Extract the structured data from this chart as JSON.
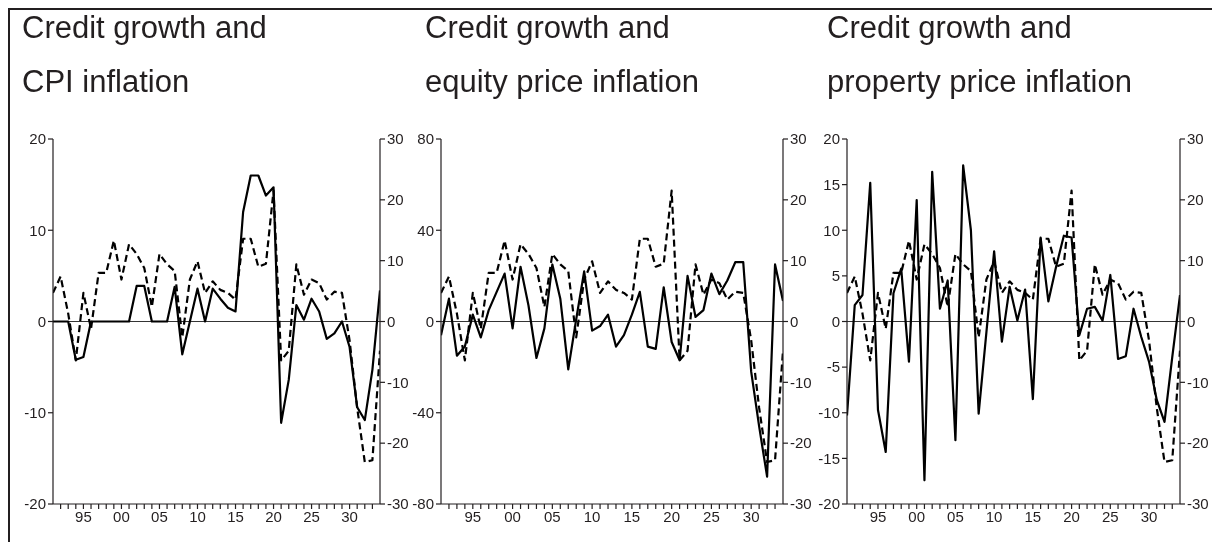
{
  "chart_data": [
    {
      "type": "line",
      "title": "Credit growth and\nCPI inflation",
      "x": [
        1991,
        1992,
        1993,
        1994,
        1995,
        1996,
        1997,
        1998,
        1999,
        2000,
        2001,
        2002,
        2003,
        2004,
        2005,
        2006,
        2007,
        2008,
        2009,
        2010,
        2011,
        2012,
        2013,
        2014,
        2015,
        2016,
        2017,
        2018,
        2019,
        2020,
        2021,
        2022,
        2023,
        2024,
        2025,
        2026,
        2027,
        2028,
        2029,
        2030,
        2031,
        2032,
        2033,
        2034
      ],
      "xlim": [
        1991,
        2034
      ],
      "xticks": [
        {
          "value": 1992,
          "label": null
        },
        {
          "value": 1993,
          "label": null
        },
        {
          "value": 1994,
          "label": null
        },
        {
          "value": 1995,
          "label": "95"
        },
        {
          "value": 1996,
          "label": null
        },
        {
          "value": 1997,
          "label": null
        },
        {
          "value": 1998,
          "label": null
        },
        {
          "value": 1999,
          "label": null
        },
        {
          "value": 2000,
          "label": "00"
        },
        {
          "value": 2001,
          "label": null
        },
        {
          "value": 2002,
          "label": null
        },
        {
          "value": 2003,
          "label": null
        },
        {
          "value": 2004,
          "label": null
        },
        {
          "value": 2005,
          "label": "05"
        },
        {
          "value": 2006,
          "label": null
        },
        {
          "value": 2007,
          "label": null
        },
        {
          "value": 2008,
          "label": null
        },
        {
          "value": 2009,
          "label": null
        },
        {
          "value": 2010,
          "label": "10"
        },
        {
          "value": 2011,
          "label": null
        },
        {
          "value": 2012,
          "label": null
        },
        {
          "value": 2013,
          "label": null
        },
        {
          "value": 2014,
          "label": null
        },
        {
          "value": 2015,
          "label": "15"
        },
        {
          "value": 2016,
          "label": null
        },
        {
          "value": 2017,
          "label": null
        },
        {
          "value": 2018,
          "label": null
        },
        {
          "value": 2019,
          "label": null
        },
        {
          "value": 2020,
          "label": "20"
        },
        {
          "value": 2021,
          "label": null
        },
        {
          "value": 2022,
          "label": null
        },
        {
          "value": 2023,
          "label": null
        },
        {
          "value": 2024,
          "label": null
        },
        {
          "value": 2025,
          "label": "25"
        },
        {
          "value": 2026,
          "label": null
        },
        {
          "value": 2027,
          "label": null
        },
        {
          "value": 2028,
          "label": null
        },
        {
          "value": 2029,
          "label": null
        },
        {
          "value": 2030,
          "label": "30"
        },
        {
          "value": 2031,
          "label": null
        },
        {
          "value": 2032,
          "label": null
        },
        {
          "value": 2033,
          "label": null
        }
      ],
      "ylim": [
        -20,
        20
      ],
      "yticks": [
        -20,
        -10,
        0,
        10,
        20
      ],
      "y2lim": [
        -30,
        30
      ],
      "y2ticks": [
        -30,
        -20,
        -10,
        0,
        10,
        20,
        30
      ],
      "series": [
        {
          "color": "#000000",
          "line_style": "solid",
          "values": [
            0,
            0,
            0,
            -4.2,
            -3.9,
            0,
            0,
            0,
            0,
            0,
            0,
            3.9,
            3.9,
            0,
            0,
            0,
            3.8,
            -3.6,
            0,
            3.6,
            0,
            3.6,
            2.5,
            1.5,
            1.1,
            12,
            16,
            16,
            13.8,
            14.7,
            -11.1,
            -6.4,
            1.8,
            0.2,
            2.5,
            1.1,
            -1.9,
            -1.3,
            0,
            -2.8,
            -9.4,
            -10.8,
            -5.3,
            3.4
          ]
        },
        {
          "color": "#000000",
          "line_style": "dashed",
          "axis": "y2",
          "values": [
            4.7,
            7.4,
            1.3,
            -6.4,
            4.7,
            -1.2,
            8.0,
            8.0,
            13.3,
            6.9,
            12.7,
            11.1,
            8.8,
            2.4,
            11.1,
            9.4,
            8.3,
            -2.6,
            6.9,
            9.9,
            4.7,
            6.6,
            5.2,
            4.7,
            3.6,
            13.6,
            13.6,
            9.0,
            9.5,
            21.5,
            -6.4,
            -4.8,
            9.4,
            4.4,
            6.9,
            6.3,
            3.6,
            4.9,
            4.7,
            -3.1,
            -14.2,
            -23.1,
            -22.8,
            -4.8
          ]
        }
      ],
      "ref_lines": [
        {
          "axis": "y",
          "value": 0,
          "color": "#000000"
        }
      ]
    },
    {
      "type": "line",
      "title": "Credit growth and\nequity price inflation",
      "x": [
        1991,
        1992,
        1993,
        1994,
        1995,
        1996,
        1997,
        1998,
        1999,
        2000,
        2001,
        2002,
        2003,
        2004,
        2005,
        2006,
        2007,
        2008,
        2009,
        2010,
        2011,
        2012,
        2013,
        2014,
        2015,
        2016,
        2017,
        2018,
        2019,
        2020,
        2021,
        2022,
        2023,
        2024,
        2025,
        2026,
        2027,
        2028,
        2029,
        2030,
        2031,
        2032,
        2033,
        2034
      ],
      "xlim": [
        1991,
        2034
      ],
      "xticks": [
        {
          "value": 1992,
          "label": null
        },
        {
          "value": 1993,
          "label": null
        },
        {
          "value": 1994,
          "label": null
        },
        {
          "value": 1995,
          "label": "95"
        },
        {
          "value": 1996,
          "label": null
        },
        {
          "value": 1997,
          "label": null
        },
        {
          "value": 1998,
          "label": null
        },
        {
          "value": 1999,
          "label": null
        },
        {
          "value": 2000,
          "label": "00"
        },
        {
          "value": 2001,
          "label": null
        },
        {
          "value": 2002,
          "label": null
        },
        {
          "value": 2003,
          "label": null
        },
        {
          "value": 2004,
          "label": null
        },
        {
          "value": 2005,
          "label": "05"
        },
        {
          "value": 2006,
          "label": null
        },
        {
          "value": 2007,
          "label": null
        },
        {
          "value": 2008,
          "label": null
        },
        {
          "value": 2009,
          "label": null
        },
        {
          "value": 2010,
          "label": "10"
        },
        {
          "value": 2011,
          "label": null
        },
        {
          "value": 2012,
          "label": null
        },
        {
          "value": 2013,
          "label": null
        },
        {
          "value": 2014,
          "label": null
        },
        {
          "value": 2015,
          "label": "15"
        },
        {
          "value": 2016,
          "label": null
        },
        {
          "value": 2017,
          "label": null
        },
        {
          "value": 2018,
          "label": null
        },
        {
          "value": 2019,
          "label": null
        },
        {
          "value": 2020,
          "label": "20"
        },
        {
          "value": 2021,
          "label": null
        },
        {
          "value": 2022,
          "label": null
        },
        {
          "value": 2023,
          "label": null
        },
        {
          "value": 2024,
          "label": null
        },
        {
          "value": 2025,
          "label": "25"
        },
        {
          "value": 2026,
          "label": null
        },
        {
          "value": 2027,
          "label": null
        },
        {
          "value": 2028,
          "label": null
        },
        {
          "value": 2029,
          "label": null
        },
        {
          "value": 2030,
          "label": "30"
        },
        {
          "value": 2031,
          "label": null
        },
        {
          "value": 2032,
          "label": null
        },
        {
          "value": 2033,
          "label": null
        }
      ],
      "ylim": [
        -80,
        80
      ],
      "yticks": [
        -80,
        -40,
        0,
        40,
        80
      ],
      "y2lim": [
        -30,
        30
      ],
      "y2ticks": [
        -30,
        -20,
        -10,
        0,
        10,
        20,
        30
      ],
      "series": [
        {
          "color": "#000000",
          "line_style": "solid",
          "values": [
            -6,
            10,
            -15,
            -11,
            3,
            -7,
            5,
            13,
            21,
            -3,
            24,
            7,
            -16,
            -3,
            25,
            10,
            -21,
            1,
            22,
            -4,
            -2,
            3,
            -11,
            -6,
            3,
            13,
            -11,
            -12,
            15,
            -9,
            -17,
            20,
            2,
            5,
            21,
            12,
            18,
            26,
            26,
            -22,
            -46,
            -68,
            25,
            9
          ]
        },
        {
          "color": "#000000",
          "line_style": "dashed",
          "axis": "y2",
          "values": [
            4.7,
            7.4,
            1.3,
            -6.4,
            4.7,
            -1.2,
            8.0,
            8.0,
            13.3,
            6.9,
            12.7,
            11.1,
            8.8,
            2.4,
            11.1,
            9.4,
            8.3,
            -2.6,
            6.9,
            9.9,
            4.7,
            6.6,
            5.2,
            4.7,
            3.6,
            13.6,
            13.6,
            9.0,
            9.5,
            21.5,
            -6.4,
            -4.8,
            9.4,
            4.4,
            6.9,
            6.3,
            3.6,
            4.9,
            4.7,
            -3.1,
            -14.2,
            -23.1,
            -22.8,
            -4.8
          ]
        }
      ],
      "ref_lines": [
        {
          "axis": "y",
          "value": 0,
          "color": "#000000"
        }
      ]
    },
    {
      "type": "line",
      "title": "Credit growth and\nproperty price inflation",
      "x": [
        1991,
        1992,
        1993,
        1994,
        1995,
        1996,
        1997,
        1998,
        1999,
        2000,
        2001,
        2002,
        2003,
        2004,
        2005,
        2006,
        2007,
        2008,
        2009,
        2010,
        2011,
        2012,
        2013,
        2014,
        2015,
        2016,
        2017,
        2018,
        2019,
        2020,
        2021,
        2022,
        2023,
        2024,
        2025,
        2026,
        2027,
        2028,
        2029,
        2030,
        2031,
        2032,
        2033,
        2034
      ],
      "xlim": [
        1991,
        2034
      ],
      "xticks": [
        {
          "value": 1992,
          "label": null
        },
        {
          "value": 1993,
          "label": null
        },
        {
          "value": 1994,
          "label": null
        },
        {
          "value": 1995,
          "label": "95"
        },
        {
          "value": 1996,
          "label": null
        },
        {
          "value": 1997,
          "label": null
        },
        {
          "value": 1998,
          "label": null
        },
        {
          "value": 1999,
          "label": null
        },
        {
          "value": 2000,
          "label": "00"
        },
        {
          "value": 2001,
          "label": null
        },
        {
          "value": 2002,
          "label": null
        },
        {
          "value": 2003,
          "label": null
        },
        {
          "value": 2004,
          "label": null
        },
        {
          "value": 2005,
          "label": "05"
        },
        {
          "value": 2006,
          "label": null
        },
        {
          "value": 2007,
          "label": null
        },
        {
          "value": 2008,
          "label": null
        },
        {
          "value": 2009,
          "label": null
        },
        {
          "value": 2010,
          "label": "10"
        },
        {
          "value": 2011,
          "label": null
        },
        {
          "value": 2012,
          "label": null
        },
        {
          "value": 2013,
          "label": null
        },
        {
          "value": 2014,
          "label": null
        },
        {
          "value": 2015,
          "label": "15"
        },
        {
          "value": 2016,
          "label": null
        },
        {
          "value": 2017,
          "label": null
        },
        {
          "value": 2018,
          "label": null
        },
        {
          "value": 2019,
          "label": null
        },
        {
          "value": 2020,
          "label": "20"
        },
        {
          "value": 2021,
          "label": null
        },
        {
          "value": 2022,
          "label": null
        },
        {
          "value": 2023,
          "label": null
        },
        {
          "value": 2024,
          "label": null
        },
        {
          "value": 2025,
          "label": "25"
        },
        {
          "value": 2026,
          "label": null
        },
        {
          "value": 2027,
          "label": null
        },
        {
          "value": 2028,
          "label": null
        },
        {
          "value": 2029,
          "label": null
        },
        {
          "value": 2030,
          "label": "30"
        },
        {
          "value": 2031,
          "label": null
        },
        {
          "value": 2032,
          "label": null
        },
        {
          "value": 2033,
          "label": null
        }
      ],
      "ylim": [
        -20,
        20
      ],
      "yticks": [
        -20,
        -15,
        -10,
        -5,
        0,
        5,
        10,
        15,
        20
      ],
      "y2lim": [
        -30,
        30
      ],
      "y2ticks": [
        -30,
        -20,
        -10,
        0,
        10,
        20,
        30
      ],
      "series": [
        {
          "color": "#000000",
          "line_style": "solid",
          "values": [
            -10.3,
            1.8,
            2.9,
            15.2,
            -9.7,
            -14.3,
            3.1,
            5.8,
            -4.4,
            13.3,
            -17.4,
            16.4,
            1.4,
            4.5,
            -13.0,
            17.1,
            10,
            -10.1,
            -1.2,
            7.7,
            -2.2,
            3.8,
            0.1,
            3.5,
            -8.5,
            9.2,
            2.2,
            6,
            9.4,
            9.2,
            -1.5,
            1.4,
            1.6,
            0.1,
            5.1,
            -4.1,
            -3.8,
            1.4,
            -1.7,
            -4.4,
            -8.6,
            -11.0,
            -3.9,
            2.9
          ]
        },
        {
          "color": "#000000",
          "line_style": "dashed",
          "axis": "y2",
          "values": [
            4.7,
            7.4,
            1.3,
            -6.4,
            4.7,
            -1.2,
            8.0,
            8.0,
            13.3,
            6.9,
            12.7,
            11.1,
            8.8,
            2.4,
            11.1,
            9.4,
            8.3,
            -2.6,
            6.9,
            9.9,
            4.7,
            6.6,
            5.2,
            4.7,
            3.6,
            13.6,
            13.6,
            9.0,
            9.5,
            21.5,
            -6.4,
            -4.8,
            9.4,
            4.4,
            6.9,
            6.3,
            3.6,
            4.9,
            4.7,
            -3.1,
            -14.2,
            -23.1,
            -22.8,
            -4.8
          ]
        }
      ],
      "ref_lines": [
        {
          "axis": "y",
          "value": 0,
          "color": "#000000"
        }
      ]
    }
  ]
}
